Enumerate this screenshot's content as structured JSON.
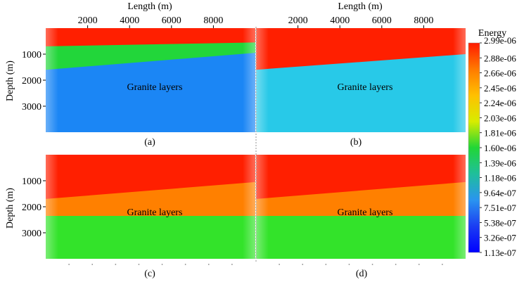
{
  "chart_data": [
    {
      "type": "heatmap",
      "panel_label": "(a)",
      "xlabel": "Length (m)",
      "ylabel": "Depth (m)",
      "x_ticks": [
        2000,
        4000,
        6000,
        8000
      ],
      "y_ticks": [
        1000,
        2000,
        3000
      ],
      "xlim": [
        0,
        10000
      ],
      "ylim": [
        0,
        4000
      ],
      "annotation": "Granite layers",
      "layers": [
        {
          "name": "top",
          "color": "#ff1f00"
        },
        {
          "name": "middle",
          "color": "#22d63a"
        },
        {
          "name": "bottom",
          "color": "#1b86f5"
        }
      ],
      "boundaries": [
        {
          "x_left_m": 0,
          "depth_left_m": 700,
          "x_right_m": 10000,
          "depth_right_m": 550
        },
        {
          "x_left_m": 0,
          "depth_left_m": 1600,
          "x_right_m": 10000,
          "depth_right_m": 950
        }
      ]
    },
    {
      "type": "heatmap",
      "panel_label": "(b)",
      "xlabel": "Length (m)",
      "x_ticks": [
        2000,
        4000,
        6000,
        8000
      ],
      "xlim": [
        0,
        10000
      ],
      "ylim": [
        0,
        4000
      ],
      "annotation": "Granite layers",
      "layers": [
        {
          "name": "top",
          "color": "#ff1f00"
        },
        {
          "name": "bottom",
          "color": "#28c9e8"
        }
      ],
      "boundaries": [
        {
          "x_left_m": 0,
          "depth_left_m": 1600,
          "x_right_m": 10000,
          "depth_right_m": 1000
        }
      ]
    },
    {
      "type": "heatmap",
      "panel_label": "(c)",
      "ylabel": "Depth (m)",
      "y_ticks": [
        1000,
        2000,
        3000
      ],
      "xlim": [
        0,
        10000
      ],
      "ylim": [
        0,
        4000
      ],
      "annotation": "Granite layers",
      "layers": [
        {
          "name": "top",
          "color": "#ff1f00"
        },
        {
          "name": "middle",
          "color": "#ff8000"
        },
        {
          "name": "bottom",
          "color": "#33e32a"
        }
      ],
      "boundaries": [
        {
          "x_left_m": 0,
          "depth_left_m": 1700,
          "x_right_m": 10000,
          "depth_right_m": 1050
        },
        {
          "x_left_m": 0,
          "depth_left_m": 2350,
          "x_right_m": 10000,
          "depth_right_m": 2350
        }
      ]
    },
    {
      "type": "heatmap",
      "panel_label": "(d)",
      "xlim": [
        0,
        10000
      ],
      "ylim": [
        0,
        4000
      ],
      "annotation": "Granite layers",
      "layers": [
        {
          "name": "top",
          "color": "#ff1f00"
        },
        {
          "name": "middle",
          "color": "#ff8000"
        },
        {
          "name": "bottom",
          "color": "#33e32a"
        }
      ],
      "boundaries": [
        {
          "x_left_m": 0,
          "depth_left_m": 1700,
          "x_right_m": 10000,
          "depth_right_m": 1050
        },
        {
          "x_left_m": 0,
          "depth_left_m": 2350,
          "x_right_m": 10000,
          "depth_right_m": 2350
        }
      ]
    }
  ],
  "colorbar": {
    "title": "Energy",
    "labels": [
      "2.99e-06",
      "2.88e-06",
      "2.66e-06",
      "2.45e-06",
      "2.24e-06",
      "2.03e-06",
      "1.81e-06",
      "1.60e-06",
      "1.39e-06",
      "1.18e-06",
      "9.64e-07",
      "7.51e-07",
      "5.38e-07",
      "3.26e-07",
      "1.13e-07"
    ],
    "colors": [
      "#ff1a00",
      "#ff7a00",
      "#ffc000",
      "#d8ec00",
      "#21d636",
      "#1fbf9b",
      "#2a94f0",
      "#1b3df2",
      "#0000ff"
    ]
  }
}
